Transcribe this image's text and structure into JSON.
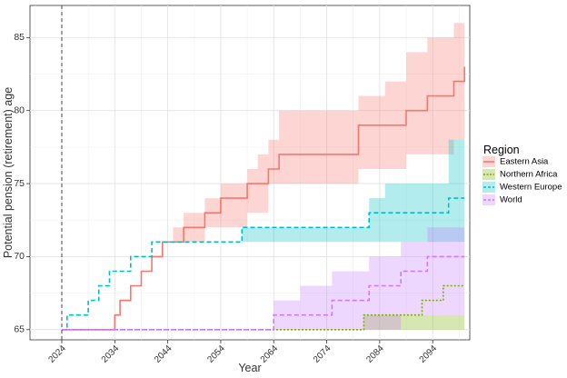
{
  "chart_data": {
    "type": "line",
    "xlabel": "Year",
    "ylabel": "Potential pension (retirement) age",
    "xlim": [
      2018,
      2101
    ],
    "ylim": [
      64.3,
      87.2
    ],
    "x_ticks": [
      2024,
      2034,
      2044,
      2054,
      2064,
      2074,
      2084,
      2094
    ],
    "y_ticks": [
      65,
      70,
      75,
      80,
      85
    ],
    "grid": true,
    "legend_position": "right",
    "legend_title": "Region",
    "reference_line": {
      "x": 2024,
      "style": "dashed",
      "color": "#444444"
    },
    "series": [
      {
        "name": "Eastern Asia",
        "color": "#F8766D",
        "line_style": "solid",
        "x": [
          2024,
          2033,
          2034,
          2035,
          2036,
          2037,
          2038,
          2039,
          2040,
          2041,
          2042,
          2043,
          2045,
          2047,
          2049,
          2051,
          2054,
          2057,
          2059,
          2061,
          2063,
          2065,
          2080,
          2085,
          2089,
          2091,
          2093,
          2095,
          2098,
          2100
        ],
        "values": [
          65,
          65,
          66,
          67,
          67,
          68,
          68,
          69,
          69,
          70,
          70,
          71,
          71,
          72,
          72,
          73,
          74,
          74,
          75,
          75,
          76,
          77,
          79,
          79,
          80,
          80,
          81,
          81,
          82,
          83
        ],
        "band_upper": [
          65,
          65,
          66,
          67,
          67,
          68,
          68,
          69,
          69,
          70,
          70,
          71,
          72,
          73,
          73,
          74,
          75,
          75,
          76,
          77,
          78,
          80,
          81,
          82,
          84,
          84,
          85,
          85,
          86,
          86
        ],
        "band_lower": [
          65,
          65,
          66,
          67,
          67,
          68,
          68,
          69,
          69,
          70,
          70,
          71,
          71,
          71,
          71,
          72,
          72,
          72,
          73,
          73,
          75,
          75,
          76,
          76,
          77,
          77,
          77,
          77,
          78,
          79
        ]
      },
      {
        "name": "Northern Africa",
        "color": "#7CAE00",
        "line_style": "dotted",
        "x": [
          2024,
          2078,
          2081,
          2086,
          2092,
          2096,
          2100
        ],
        "values": [
          65,
          65,
          66,
          66,
          67,
          68,
          68
        ],
        "band_upper": [
          65,
          65,
          66,
          66,
          66,
          66,
          66
        ],
        "band_lower": [
          65,
          65,
          65,
          65,
          65,
          65,
          65
        ]
      },
      {
        "name": "Western Europe",
        "color": "#00BFC4",
        "line_style": "dashed",
        "x": [
          2024,
          2025,
          2027,
          2029,
          2031,
          2033,
          2035,
          2037,
          2039,
          2041,
          2043,
          2058,
          2082,
          2085,
          2097,
          2100
        ],
        "values": [
          65,
          66,
          66,
          67,
          68,
          69,
          69,
          70,
          70,
          71,
          71,
          72,
          73,
          73,
          74,
          74
        ],
        "band_upper": [
          65,
          66,
          66,
          67,
          68,
          69,
          69,
          70,
          70,
          71,
          71,
          72,
          74,
          75,
          78,
          78
        ],
        "band_lower": [
          65,
          66,
          66,
          67,
          68,
          69,
          69,
          70,
          70,
          71,
          71,
          71,
          71,
          71,
          71,
          72
        ]
      },
      {
        "name": "World",
        "color": "#C77CFF",
        "line_style": "dashed",
        "x": [
          2024,
          2061,
          2064,
          2069,
          2075,
          2082,
          2088,
          2093,
          2100
        ],
        "values": [
          65,
          65,
          66,
          66,
          67,
          68,
          69,
          70,
          70
        ],
        "band_upper": [
          65,
          65,
          67,
          68,
          69,
          70,
          71,
          72,
          73
        ],
        "band_lower": [
          65,
          65,
          65,
          65,
          65,
          65,
          66,
          66,
          67
        ]
      }
    ]
  }
}
